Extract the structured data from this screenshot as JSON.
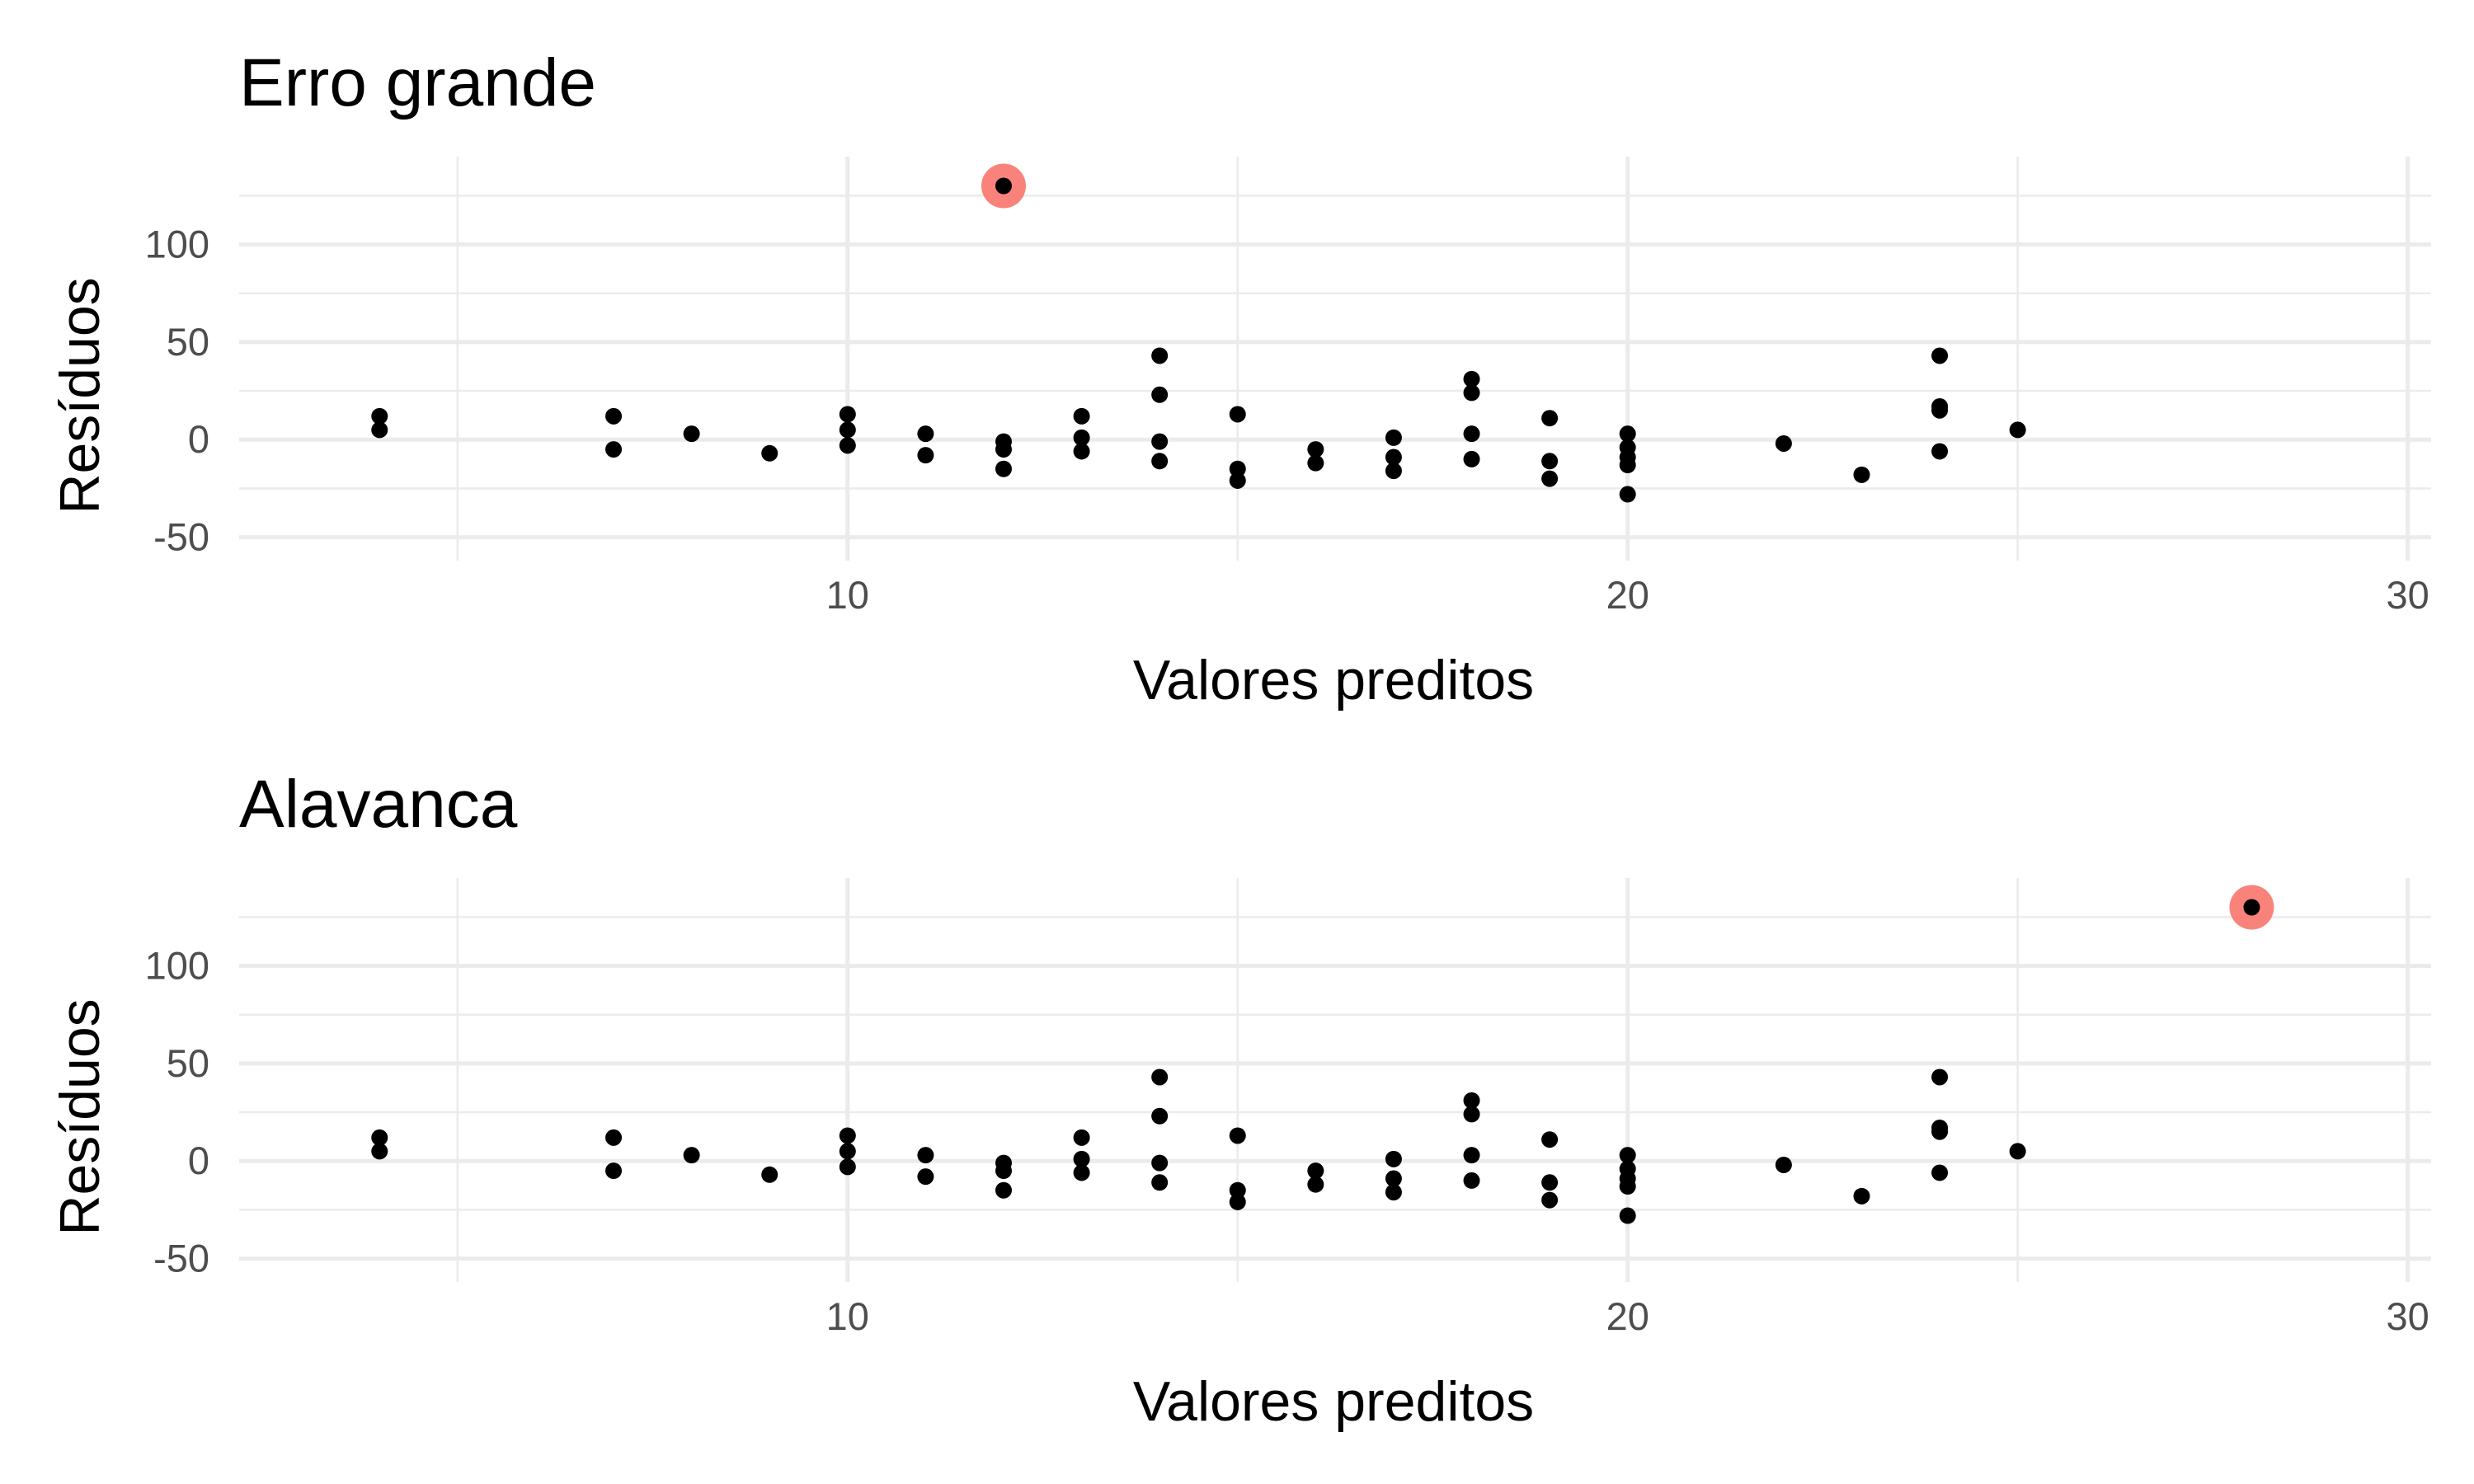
{
  "chart_data": [
    {
      "type": "scatter",
      "title": "Erro grande",
      "xlabel": "Valores preditos",
      "ylabel": "Resíduos",
      "xlim": [
        2.2,
        30.3
      ],
      "ylim": [
        -62,
        145
      ],
      "x_ticks": [
        10,
        20,
        30
      ],
      "y_ticks": [
        -50,
        0,
        50,
        100
      ],
      "grid": true,
      "point_color": "#000000",
      "highlight_color": "#f8766d",
      "points": [
        {
          "x": 4,
          "y": 12
        },
        {
          "x": 4,
          "y": 5
        },
        {
          "x": 7,
          "y": 12
        },
        {
          "x": 7,
          "y": -5
        },
        {
          "x": 8,
          "y": 3
        },
        {
          "x": 9,
          "y": -7
        },
        {
          "x": 10,
          "y": 13
        },
        {
          "x": 10,
          "y": 5
        },
        {
          "x": 10,
          "y": -3
        },
        {
          "x": 11,
          "y": 3
        },
        {
          "x": 11,
          "y": -8
        },
        {
          "x": 12,
          "y": -1
        },
        {
          "x": 12,
          "y": -5
        },
        {
          "x": 12,
          "y": -15
        },
        {
          "x": 13,
          "y": 12
        },
        {
          "x": 13,
          "y": 1
        },
        {
          "x": 13,
          "y": -6
        },
        {
          "x": 14,
          "y": 43
        },
        {
          "x": 14,
          "y": 23
        },
        {
          "x": 14,
          "y": -1
        },
        {
          "x": 14,
          "y": -11
        },
        {
          "x": 15,
          "y": 13
        },
        {
          "x": 15,
          "y": -15
        },
        {
          "x": 15,
          "y": -21
        },
        {
          "x": 16,
          "y": -5
        },
        {
          "x": 16,
          "y": -12
        },
        {
          "x": 17,
          "y": 1
        },
        {
          "x": 17,
          "y": -9
        },
        {
          "x": 17,
          "y": -16
        },
        {
          "x": 18,
          "y": 31
        },
        {
          "x": 18,
          "y": 24
        },
        {
          "x": 18,
          "y": 3
        },
        {
          "x": 18,
          "y": -10
        },
        {
          "x": 19,
          "y": 11
        },
        {
          "x": 19,
          "y": -11
        },
        {
          "x": 19,
          "y": -20
        },
        {
          "x": 20,
          "y": 3
        },
        {
          "x": 20,
          "y": -4
        },
        {
          "x": 20,
          "y": -9
        },
        {
          "x": 20,
          "y": -13
        },
        {
          "x": 20,
          "y": -28
        },
        {
          "x": 22,
          "y": -2
        },
        {
          "x": 23,
          "y": -18
        },
        {
          "x": 24,
          "y": 43
        },
        {
          "x": 24,
          "y": 17
        },
        {
          "x": 24,
          "y": 15
        },
        {
          "x": 24,
          "y": -6
        },
        {
          "x": 25,
          "y": 5
        }
      ],
      "highlight": {
        "x": 12,
        "y": 130
      }
    },
    {
      "type": "scatter",
      "title": "Alavanca",
      "xlabel": "Valores preditos",
      "ylabel": "Resíduos",
      "xlim": [
        2.2,
        30.3
      ],
      "ylim": [
        -62,
        145
      ],
      "x_ticks": [
        10,
        20,
        30
      ],
      "y_ticks": [
        -50,
        0,
        50,
        100
      ],
      "grid": true,
      "point_color": "#000000",
      "highlight_color": "#f8766d",
      "points": [
        {
          "x": 4,
          "y": 12
        },
        {
          "x": 4,
          "y": 5
        },
        {
          "x": 7,
          "y": 12
        },
        {
          "x": 7,
          "y": -5
        },
        {
          "x": 8,
          "y": 3
        },
        {
          "x": 9,
          "y": -7
        },
        {
          "x": 10,
          "y": 13
        },
        {
          "x": 10,
          "y": 5
        },
        {
          "x": 10,
          "y": -3
        },
        {
          "x": 11,
          "y": 3
        },
        {
          "x": 11,
          "y": -8
        },
        {
          "x": 12,
          "y": -1
        },
        {
          "x": 12,
          "y": -5
        },
        {
          "x": 12,
          "y": -15
        },
        {
          "x": 13,
          "y": 12
        },
        {
          "x": 13,
          "y": 1
        },
        {
          "x": 13,
          "y": -6
        },
        {
          "x": 14,
          "y": 43
        },
        {
          "x": 14,
          "y": 23
        },
        {
          "x": 14,
          "y": -1
        },
        {
          "x": 14,
          "y": -11
        },
        {
          "x": 15,
          "y": 13
        },
        {
          "x": 15,
          "y": -15
        },
        {
          "x": 15,
          "y": -21
        },
        {
          "x": 16,
          "y": -5
        },
        {
          "x": 16,
          "y": -12
        },
        {
          "x": 17,
          "y": 1
        },
        {
          "x": 17,
          "y": -9
        },
        {
          "x": 17,
          "y": -16
        },
        {
          "x": 18,
          "y": 31
        },
        {
          "x": 18,
          "y": 24
        },
        {
          "x": 18,
          "y": 3
        },
        {
          "x": 18,
          "y": -10
        },
        {
          "x": 19,
          "y": 11
        },
        {
          "x": 19,
          "y": -11
        },
        {
          "x": 19,
          "y": -20
        },
        {
          "x": 20,
          "y": 3
        },
        {
          "x": 20,
          "y": -4
        },
        {
          "x": 20,
          "y": -9
        },
        {
          "x": 20,
          "y": -13
        },
        {
          "x": 20,
          "y": -28
        },
        {
          "x": 22,
          "y": -2
        },
        {
          "x": 23,
          "y": -18
        },
        {
          "x": 24,
          "y": 43
        },
        {
          "x": 24,
          "y": 17
        },
        {
          "x": 24,
          "y": 15
        },
        {
          "x": 24,
          "y": -6
        },
        {
          "x": 25,
          "y": 5
        }
      ],
      "highlight": {
        "x": 28,
        "y": 130
      }
    }
  ]
}
